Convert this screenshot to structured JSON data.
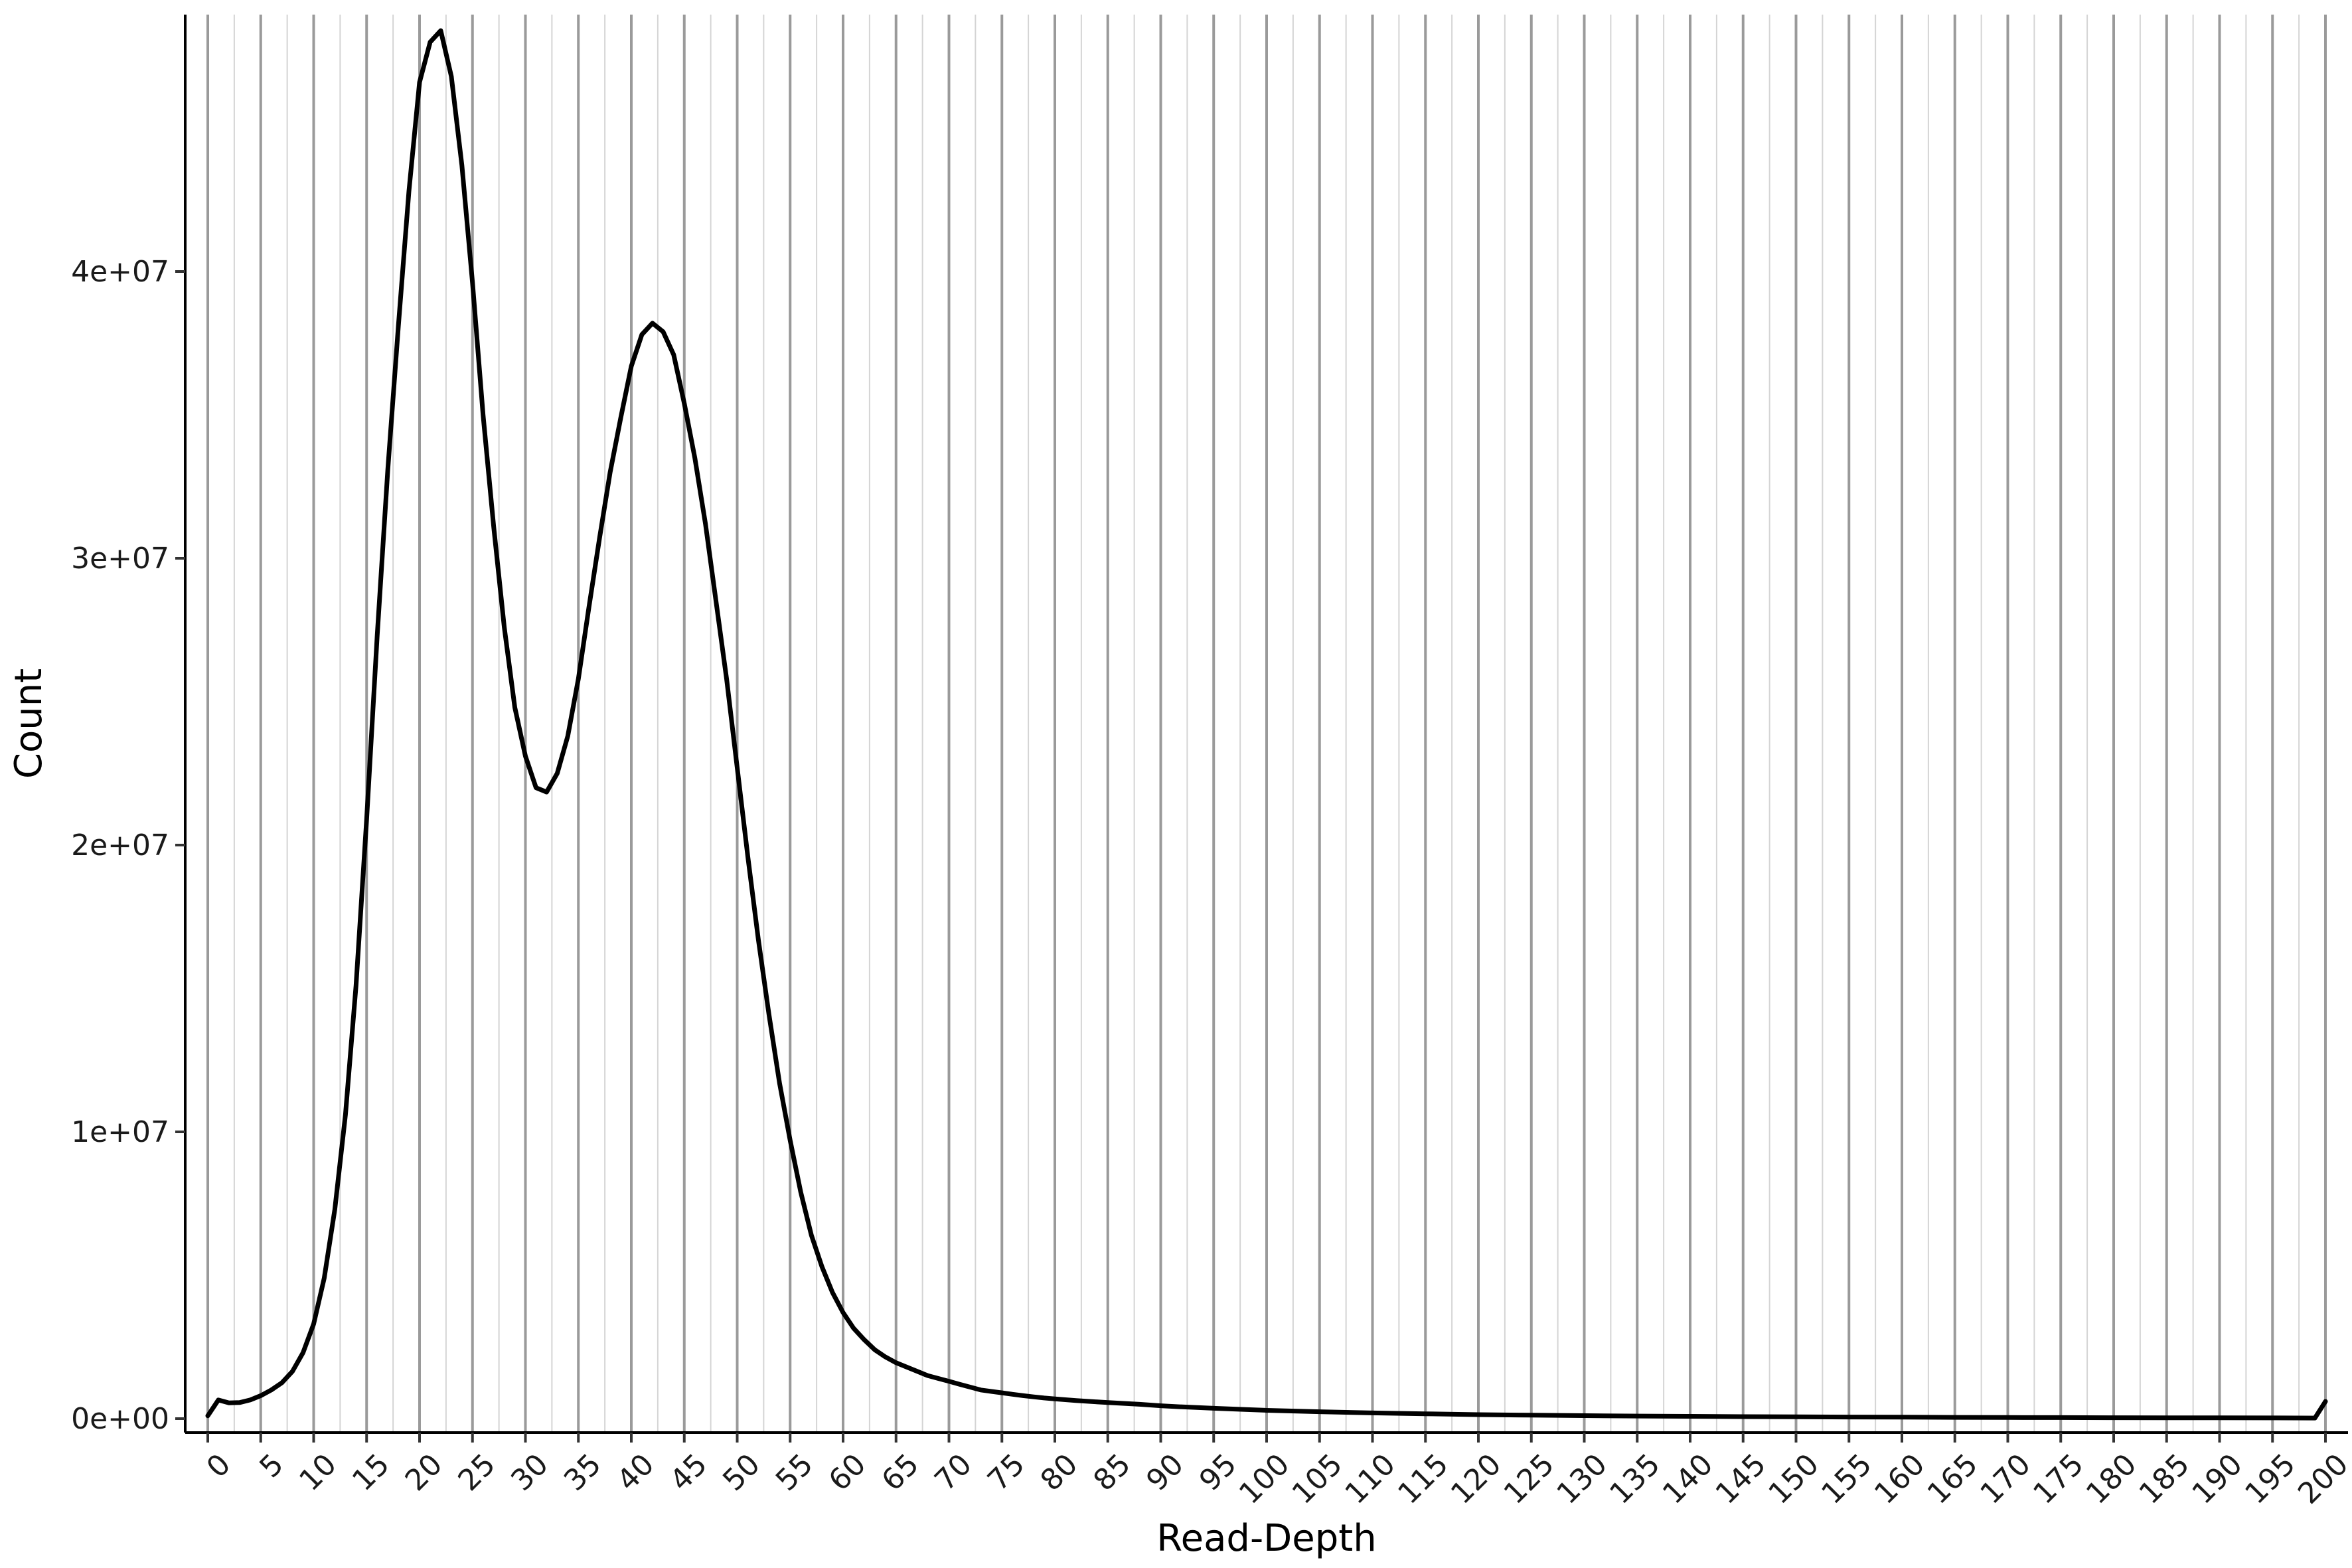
{
  "chart_data": {
    "type": "line",
    "title": "",
    "xlabel": "Read-Depth",
    "ylabel": "Count",
    "xlim": [
      0,
      200
    ],
    "ylim": [
      0,
      48500000
    ],
    "x_ticks": [
      0,
      5,
      10,
      15,
      20,
      25,
      30,
      35,
      40,
      45,
      50,
      55,
      60,
      65,
      70,
      75,
      80,
      85,
      90,
      95,
      100,
      105,
      110,
      115,
      120,
      125,
      130,
      135,
      140,
      145,
      150,
      155,
      160,
      165,
      170,
      175,
      180,
      185,
      190,
      195,
      200
    ],
    "x_tick_labels": [
      "0",
      "5",
      "10",
      "15",
      "20",
      "25",
      "30",
      "35",
      "40",
      "45",
      "50",
      "55",
      "60",
      "65",
      "70",
      "75",
      "80",
      "85",
      "90",
      "95",
      "100",
      "105",
      "110",
      "115",
      "120",
      "125",
      "130",
      "135",
      "140",
      "145",
      "150",
      "155",
      "160",
      "165",
      "170",
      "175",
      "180",
      "185",
      "190",
      "195",
      "200"
    ],
    "y_ticks": [
      0,
      10000000,
      20000000,
      30000000,
      40000000
    ],
    "y_tick_labels": [
      "0e+00",
      "1e+07",
      "2e+07",
      "3e+07",
      "4e+07"
    ],
    "grid": {
      "vertical_major": true,
      "vertical_minor": true,
      "horizontal": false
    },
    "line_color": "#000000",
    "grid_major_color": "#9a9a9a",
    "grid_minor_color": "#d4d4d4",
    "series": [
      {
        "x": [
          0,
          1,
          2,
          3,
          4,
          5,
          6,
          7,
          8,
          9,
          10,
          11,
          12,
          13,
          14,
          15,
          16,
          17,
          18,
          19,
          20,
          21,
          22,
          23,
          24,
          25,
          26,
          27,
          28,
          29,
          30,
          31,
          32,
          33,
          34,
          35,
          36,
          37,
          38,
          39,
          40,
          41,
          42,
          43,
          44,
          45,
          46,
          47,
          48,
          49,
          50,
          51,
          52,
          53,
          54,
          55,
          56,
          57,
          58,
          59,
          60,
          61,
          62,
          63,
          64,
          65,
          66,
          67,
          68,
          69,
          70,
          71,
          72,
          73,
          74,
          75,
          76,
          77,
          78,
          79,
          80,
          82,
          85,
          88,
          90,
          92,
          95,
          98,
          100,
          105,
          110,
          115,
          120,
          125,
          130,
          135,
          140,
          145,
          150,
          155,
          160,
          165,
          170,
          175,
          180,
          185,
          190,
          195,
          199,
          200
        ],
        "y": [
          100000,
          650000,
          550000,
          560000,
          650000,
          800000,
          1000000,
          1250000,
          1650000,
          2300000,
          3300000,
          4900000,
          7300000,
          10600000,
          15100000,
          20900000,
          27300000,
          33100000,
          38100000,
          42800000,
          46600000,
          48000000,
          48400000,
          46800000,
          43700000,
          39600000,
          35000000,
          31100000,
          27600000,
          24800000,
          23100000,
          22000000,
          21850000,
          22500000,
          23800000,
          25800000,
          28300000,
          30700000,
          33000000,
          34900000,
          36700000,
          37800000,
          38200000,
          37900000,
          37100000,
          35400000,
          33500000,
          31200000,
          28500000,
          25800000,
          22700000,
          19600000,
          16700000,
          14100000,
          11700000,
          9700000,
          7900000,
          6400000,
          5300000,
          4400000,
          3700000,
          3150000,
          2750000,
          2400000,
          2150000,
          1950000,
          1800000,
          1650000,
          1500000,
          1400000,
          1300000,
          1200000,
          1100000,
          1000000,
          950000,
          900000,
          850000,
          800000,
          760000,
          720000,
          690000,
          630000,
          560000,
          500000,
          450000,
          410000,
          360000,
          320000,
          290000,
          240000,
          200000,
          170000,
          140000,
          120000,
          105000,
          90000,
          80000,
          70000,
          62000,
          55000,
          50000,
          45000,
          40000,
          36000,
          33000,
          30000,
          28000,
          25000,
          20000,
          600000
        ]
      }
    ]
  }
}
